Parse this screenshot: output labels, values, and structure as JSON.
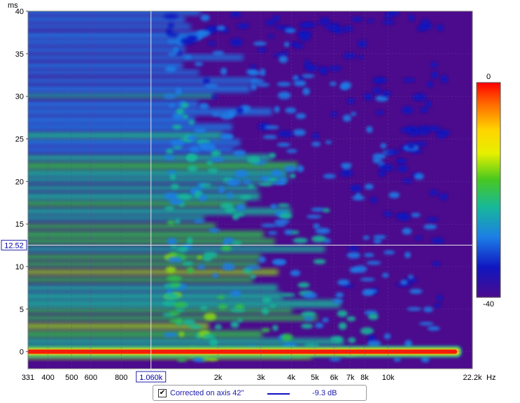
{
  "chart_data": {
    "type": "heatmap",
    "title": "",
    "xlabel": "",
    "ylabel": "",
    "x_scale": "log",
    "xlim": [
      331,
      22200
    ],
    "ylim": [
      -2,
      40
    ],
    "x_unit": "Hz",
    "y_unit": "ms",
    "x_ticks": [
      {
        "value": 331,
        "label": "331"
      },
      {
        "value": 400,
        "label": "400"
      },
      {
        "value": 500,
        "label": "500"
      },
      {
        "value": 600,
        "label": "600"
      },
      {
        "value": 800,
        "label": "800"
      },
      {
        "value": 2000,
        "label": "2k"
      },
      {
        "value": 3000,
        "label": "3k"
      },
      {
        "value": 4000,
        "label": "4k"
      },
      {
        "value": 5000,
        "label": "5k"
      },
      {
        "value": 6000,
        "label": "6k"
      },
      {
        "value": 7000,
        "label": "7k"
      },
      {
        "value": 8000,
        "label": "8k"
      },
      {
        "value": 10000,
        "label": "10k"
      },
      {
        "value": 22200,
        "label": "22.2k"
      }
    ],
    "y_ticks": [
      0,
      5,
      10,
      15,
      20,
      25,
      30,
      35,
      40
    ],
    "colorbar": {
      "min": -40,
      "max": 0,
      "min_label": "-40",
      "max_label": "0"
    },
    "cursor": {
      "x": 1060,
      "x_label": "1.060k",
      "y": 12.52,
      "y_label": "12.52"
    },
    "grid": true,
    "colors": {
      "background": "#4b0b8c",
      "cursor": "#e8e8e8",
      "axis_box": "#2222aa"
    }
  },
  "legend": {
    "checked": true,
    "check_mark": "✔",
    "series_name": "Corrected on axis 42\"",
    "value": "-9.3 dB",
    "line_color": "#1010c0"
  }
}
